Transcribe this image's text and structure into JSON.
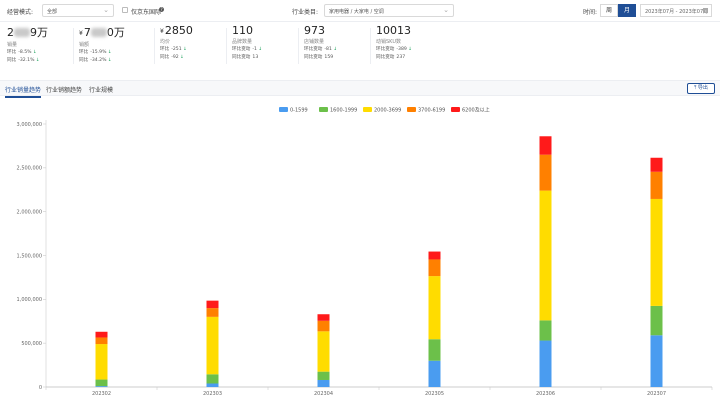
{
  "filters": {
    "mode_label": "经营模式:",
    "mode_value": "全部",
    "jd_only_label": "仅京东国际",
    "category_label": "行业类目:",
    "category_value": "家用电器 / 大家电 / 空调",
    "time_label": "时间:",
    "period_week": "周",
    "period_month": "月",
    "date_range": "2023年07月 - 2023年07月"
  },
  "kpis": [
    {
      "value_pre": "2",
      "value_post": "9万",
      "currency": "",
      "name": "销量",
      "change1_label": "环比",
      "change1_value": "-8.5%",
      "change2_label": "同比",
      "change2_value": "-32.1%"
    },
    {
      "value_pre": "7",
      "value_post": "0万",
      "currency": "¥",
      "name": "销额",
      "change1_label": "环比",
      "change1_value": "-15.9%",
      "change2_label": "同比",
      "change2_value": "-34.2%"
    },
    {
      "value_pre": "2850",
      "value_post": "",
      "currency": "¥",
      "name": "均价",
      "change1_label": "环比",
      "change1_value": "-251",
      "change2_label": "同比",
      "change2_value": "-92"
    },
    {
      "value_pre": "110",
      "value_post": "",
      "currency": "",
      "name": "品牌数量",
      "change1_label": "环比变动",
      "change1_value": "-1",
      "change2_label": "同比变动",
      "change2_value": "13"
    },
    {
      "value_pre": "973",
      "value_post": "",
      "currency": "",
      "name": "店铺数量",
      "change1_label": "环比变动",
      "change1_value": "-81",
      "change2_label": "同比变动",
      "change2_value": "159"
    },
    {
      "value_pre": "10013",
      "value_post": "",
      "currency": "",
      "name": "动销SKU数",
      "change1_label": "环比变动",
      "change1_value": "-389",
      "change2_label": "同比变动",
      "change2_value": "237"
    }
  ],
  "tabs": [
    {
      "label": "行业销量趋势",
      "active": true
    },
    {
      "label": "行业销额趋势",
      "active": false
    },
    {
      "label": "行业规模",
      "active": false
    }
  ],
  "export_label": "导出",
  "chart_data": {
    "type": "bar",
    "stacked": true,
    "categories": [
      "202302",
      "202303",
      "202304",
      "202305",
      "202306",
      "202307"
    ],
    "series": [
      {
        "name": "0-1599",
        "color": "#4a9cf0",
        "values": [
          10000,
          40000,
          80000,
          300000,
          530000,
          590000
        ]
      },
      {
        "name": "1600-1999",
        "color": "#6cc04a",
        "values": [
          75000,
          105000,
          95000,
          245000,
          230000,
          335000
        ]
      },
      {
        "name": "2000-3699",
        "color": "#ffdc00",
        "values": [
          405000,
          655000,
          460000,
          720000,
          1480000,
          1220000
        ]
      },
      {
        "name": "3700-6199",
        "color": "#ff8000",
        "values": [
          75000,
          100000,
          120000,
          190000,
          410000,
          310000
        ]
      },
      {
        "name": "6200及以上",
        "color": "#ff1a1a",
        "values": [
          65000,
          85000,
          75000,
          90000,
          210000,
          160000
        ]
      }
    ],
    "ylim": [
      0,
      3000000
    ],
    "yticks": [
      0,
      500000,
      1000000,
      1500000,
      2000000,
      2500000,
      3000000
    ],
    "ytick_labels": [
      "0",
      "500,000",
      "1,000,000",
      "1,500,000",
      "2,000,000",
      "2,500,000",
      "3,000,000"
    ],
    "legend_position": "top-center",
    "grid": false
  }
}
